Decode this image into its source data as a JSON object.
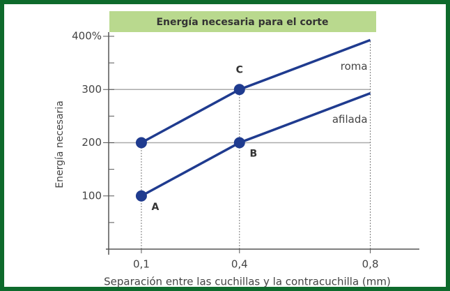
{
  "chart_data": {
    "type": "line",
    "title": "Energía necesaria para el corte",
    "x_label": "Separación entre las cuchillas y la contracuchilla (mm)",
    "y_label": "Energía necesaria",
    "x": [
      0.1,
      0.4,
      0.8
    ],
    "series": [
      {
        "name": "roma",
        "color": "#1f3b8f",
        "values": [
          200,
          300,
          393
        ],
        "markers": [
          true,
          true,
          false
        ]
      },
      {
        "name": "afilada",
        "color": "#1f3b8f",
        "values": [
          100,
          200,
          293
        ],
        "markers": [
          true,
          true,
          false
        ]
      }
    ],
    "annotations": [
      {
        "text": "A",
        "x": 0.1,
        "y": 100
      },
      {
        "text": "B",
        "x": 0.4,
        "y": 200
      },
      {
        "text": "C",
        "x": 0.4,
        "y": 300
      }
    ],
    "xlim": [
      0,
      0.95
    ],
    "xticks": [
      {
        "value": 0.1,
        "label": "0,1"
      },
      {
        "value": 0.4,
        "label": "0,4"
      },
      {
        "value": 0.8,
        "label": "0,8"
      }
    ],
    "ylim": [
      0,
      400
    ],
    "yticks": [
      100,
      200,
      300,
      {
        "value": 400,
        "label": "400%"
      }
    ],
    "yminor": [
      50,
      150,
      250,
      350
    ],
    "hlines": [
      200,
      300
    ]
  }
}
